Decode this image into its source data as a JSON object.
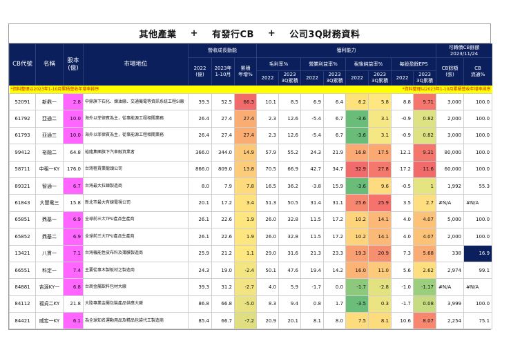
{
  "title": {
    "part1": "其他產業",
    "plus1": "+",
    "part2": "有發行CB",
    "plus2": "+",
    "part3": "公司3Q財務資料"
  },
  "header": {
    "cb_code": "CB代號",
    "name": "名稱",
    "capital": "股本\n(億)",
    "market": "市場地位",
    "revenue_group": "營收成長動能",
    "rev_2022": "2022\n(億)",
    "rev_2023": "2023年\n1-10月",
    "rev_growth": "累積\n年增%",
    "profit_group": "獲利能力",
    "gross_margin": "毛利率%",
    "op_margin": "營業利益率%",
    "net_margin": "稅後純益率%",
    "eps": "每股盈餘EPS",
    "y2022": "2022",
    "y2023_3q": "2023\n3Q累積",
    "cb_group": "可轉債CB餘額\n2023/11/24",
    "cb_balance": "CB餘額\n(張)",
    "cb_float": "CB\n流通%"
  },
  "note": {
    "left": "*資料整理以2023年1-10月累積營收年增率排序",
    "right": "*資料整理以2023年1-10月累積營收年增率排序"
  },
  "colors": {
    "header_bg": "#0b1f5c",
    "note_bg": "#ffff00",
    "pink": "#ff66ff"
  },
  "rows": [
    {
      "code": "52091",
      "name": "新鼎一",
      "capital": "2.8",
      "capital_pink": true,
      "market": "中鼎旗下石化、煉油廠、交通機電等資訊系統工程SI廠",
      "rev2022": "39.3",
      "rev2023": "52.5",
      "growth": "66.3",
      "growth_c": "#f26b6b",
      "gm22": "10.1",
      "gm23": "8.5",
      "om22": "6.9",
      "om23": "6.4",
      "nm22": "6.2",
      "nm22_c": "#fde27c",
      "nm23": "5.8",
      "nm23_c": "#fee680",
      "eps22": "8.8",
      "eps23": "9.71",
      "eps23_c": "#f5766c",
      "cb_bal": "3,000",
      "cb_float": "100.0"
    },
    {
      "code": "61792",
      "name": "亞通二",
      "capital": "10.0",
      "capital_pink": true,
      "market": "海外以菲律賓為主，從事能源工程相關業務",
      "rev2022": "26.4",
      "rev2023": "27.4",
      "growth": "27.4",
      "growth_c": "#f9ad73",
      "gm22": "2.3",
      "gm23": "12.6",
      "om22": "-5.4",
      "om23": "6.7",
      "nm22": "-3.6",
      "nm22_c": "#6abd79",
      "nm23": "3.1",
      "nm23_c": "#f5e783",
      "eps22": "-0.9",
      "eps23": "0.82",
      "eps23_c": "#dfe282",
      "cb_bal": "2,000",
      "cb_float": "100.0"
    },
    {
      "code": "61793",
      "name": "亞通三",
      "capital": "10.0",
      "capital_pink": true,
      "market": "海外以菲律賓為主，從事能源工程相關業務",
      "rev2022": "26.4",
      "rev2023": "27.4",
      "growth": "27.4",
      "growth_c": "#f9ad73",
      "gm22": "2.3",
      "gm23": "12.6",
      "om22": "-5.4",
      "om23": "6.7",
      "nm22": "-3.6",
      "nm22_c": "#6abd79",
      "nm23": "3.1",
      "nm23_c": "#f5e783",
      "eps22": "-0.9",
      "eps23": "0.82",
      "eps23_c": "#dfe282",
      "cb_bal": "3,000",
      "cb_float": "100.0"
    },
    {
      "code": "99412",
      "name": "裕融二",
      "capital": "64.8",
      "capital_pink": false,
      "market": "裕隆集團旗下汽車融資業者",
      "rev2022": "366.0",
      "rev2023": "344.0",
      "growth": "14.9",
      "growth_c": "#fcc979",
      "gm22": "57.9",
      "gm23": "55.2",
      "om22": "24.3",
      "om23": "21.9",
      "nm22": "16.8",
      "nm22_c": "#fbaa74",
      "nm23": "17.5",
      "nm23_c": "#fba872",
      "eps22": "12.1",
      "eps23": "9.31",
      "eps23_c": "#f5766c",
      "cb_bal": "80,000",
      "cb_float": "100.0"
    },
    {
      "code": "58711",
      "name": "中租一KY",
      "capital": "176.0",
      "capital_pink": false,
      "market": "台灣租賃業龍頭公司",
      "rev2022": "866.0",
      "rev2023": "809.0",
      "growth": "13.8",
      "growth_c": "#fccc7a",
      "gm22": "70.5",
      "gm23": "66.9",
      "om22": "42.7",
      "om23": "34.7",
      "nm22": "32.9",
      "nm22_c": "#f26b6b",
      "nm23": "27.8",
      "nm23_c": "#f4796c",
      "eps22": "17.2",
      "eps23": "11.6",
      "eps23_c": "#f26b6b",
      "cb_bal": "60,000",
      "cb_float": "100.0"
    },
    {
      "code": "89321",
      "name": "智通一",
      "capital": "6.7",
      "capital_pink": true,
      "market": "台灣最大拉鍊製造商",
      "rev2022": "8.0",
      "rev2023": "7.9",
      "growth": "7.8",
      "growth_c": "#fdda7d",
      "gm22": "16.5",
      "gm23": "36.2",
      "om22": "-3.8",
      "om23": "15.9",
      "nm22": "-3.6",
      "nm22_c": "#6abd79",
      "nm23": "9.6",
      "nm23_c": "#fedb7e",
      "eps22": "-0.5",
      "eps23": "1",
      "eps23_c": "#e5e483",
      "cb_bal": "1,992",
      "cb_float": "55.3"
    },
    {
      "code": "61843",
      "name": "大豐電三",
      "capital": "15.8",
      "capital_pink": false,
      "market": "新北市最大有線電視公司",
      "rev2022": "20.1",
      "rev2023": "17.2",
      "growth": "3.4",
      "growth_c": "#fde27e",
      "gm22": "51.3",
      "gm23": "50.5",
      "om22": "31.4",
      "om23": "31.1",
      "nm22": "25.6",
      "nm22_c": "#f7876e",
      "nm23": "25.9",
      "nm23_c": "#f5736c",
      "eps22": "3.5",
      "eps23": "2.7",
      "eps23_c": "#fdde80",
      "cb_bal": "#N/A",
      "cb_float": "#N/A",
      "na": true
    },
    {
      "code": "65851",
      "name": "鼎基一",
      "capital": "6.9",
      "capital_pink": true,
      "market": "全球前三大TPU產品生產商",
      "rev2022": "26.1",
      "rev2023": "22.6",
      "growth": "1.9",
      "growth_c": "#fde580",
      "gm22": "26.0",
      "gm23": "32.8",
      "om22": "11.5",
      "om23": "17.2",
      "nm22": "10.2",
      "nm22_c": "#fdd37c",
      "nm23": "14.1",
      "nm23_c": "#fbb877",
      "eps22": "4.0",
      "eps23": "4.07",
      "eps23_c": "#fbc278",
      "cb_bal": "5,000",
      "cb_float": "100.0"
    },
    {
      "code": "65852",
      "name": "鼎基二",
      "capital": "6.9",
      "capital_pink": true,
      "market": "全球前三大TPU產品生產商",
      "rev2022": "26.1",
      "rev2023": "22.6",
      "growth": "1.9",
      "growth_c": "#fde580",
      "gm22": "26.0",
      "gm23": "32.8",
      "om22": "11.5",
      "om23": "17.2",
      "nm22": "10.2",
      "nm22_c": "#fdd37c",
      "nm23": "14.1",
      "nm23_c": "#fbb877",
      "eps22": "4.0",
      "eps23": "4.07",
      "eps23_c": "#fbc278",
      "cb_bal": "2,000",
      "cb_float": "100.0"
    },
    {
      "code": "13421",
      "name": "八貫一",
      "capital": "7.1",
      "capital_pink": true,
      "market": "台灣機能性皮布料及薄膜製造商",
      "rev2022": "25.9",
      "rev2023": "21.2",
      "growth": "1.1",
      "growth_c": "#fde781",
      "gm22": "29.0",
      "gm23": "31.6",
      "om22": "21.3",
      "om23": "23.3",
      "nm22": "19.3",
      "nm22_c": "#f99f71",
      "nm23": "20.9",
      "nm23_c": "#f68f6f",
      "eps22": "7.3",
      "eps23": "5.68",
      "eps23_c": "#fbac74",
      "cb_bal": "338",
      "cb_float": "16.9",
      "float_nav": true
    },
    {
      "code": "66551",
      "name": "科定一",
      "capital": "7.4",
      "capital_pink": true,
      "market": "主要從事木製板材之製造商",
      "rev2022": "24.3",
      "rev2023": "19.0",
      "growth": "-2.4",
      "growth_c": "#f4e583",
      "gm22": "50.1",
      "gm23": "47.6",
      "om22": "19.4",
      "om23": "14.2",
      "nm22": "16.0",
      "nm22_c": "#fbb475",
      "nm23": "11.0",
      "nm23_c": "#fcca7a",
      "eps22": "5.6",
      "eps23": "2.62",
      "eps23_c": "#fddf80",
      "cb_bal": "2,974",
      "cb_float": "99.1"
    },
    {
      "code": "84881",
      "name": "吉源KY一",
      "capital": "6.8",
      "capital_pink": true,
      "market": "台商金屬飲料包材大廠",
      "rev2022": "39.3",
      "rev2023": "31.2",
      "growth": "-2.7",
      "growth_c": "#f2e483",
      "gm22": "4.0",
      "gm23": "5.9",
      "om22": "-1.7",
      "om23": "0.0",
      "nm22": "-1.7",
      "nm22_c": "#8cc97d",
      "nm23": "-2.8",
      "nm23_c": "#e3e281",
      "eps22": "-1.0",
      "eps23": "-1.17",
      "eps23_c": "#9bcf7e",
      "cb_bal": "#N/A",
      "cb_float": "#N/A",
      "na": true
    },
    {
      "code": "84112",
      "name": "福貞二KY",
      "capital": "21.8",
      "capital_pink": false,
      "market": "大陸專業金屬包裝產品供應大廠",
      "rev2022": "86.8",
      "rev2023": "66.8",
      "growth": "-5.0",
      "growth_c": "#e8e282",
      "gm22": "8.3",
      "gm23": "9.4",
      "om22": "0.8",
      "om23": "1.7",
      "nm22": "-3.5",
      "nm22_c": "#6bbe79",
      "nm23": "0.3",
      "nm23_c": "#ece382",
      "eps22": "-1.7",
      "eps23": "0.08",
      "eps23_c": "#c7dc80",
      "cb_bal": "3,999",
      "cb_float": "100.0"
    },
    {
      "code": "84421",
      "name": "威宏一KY",
      "capital": "6.1",
      "capital_pink": true,
      "market": "為全球知名運動用品及精品包袋代工製造商",
      "rev2022": "85.4",
      "rev2023": "66.7",
      "growth": "-7.2",
      "growth_c": "#dfdf82",
      "gm22": "20.9",
      "gm23": "20.1",
      "om22": "8.1",
      "om23": "8.0",
      "nm22": "7.5",
      "nm22_c": "#fddc7e",
      "nm23": "8.1",
      "nm23_c": "#fddc7e",
      "eps22": "10.6",
      "eps23": "8.07",
      "eps23_c": "#f7876e",
      "cb_bal": "2,254",
      "cb_float": "75.1"
    }
  ]
}
